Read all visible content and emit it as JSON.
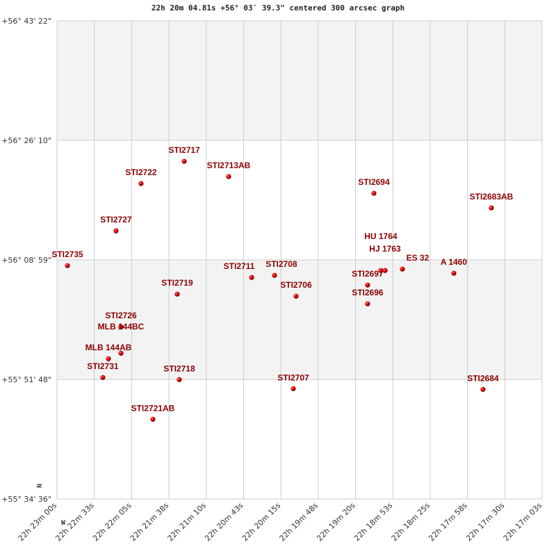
{
  "chart_data": {
    "type": "scatter",
    "title": "22h 20m 04.81s +56° 03′ 39.3\" centered 300 arcsec graph",
    "x_axis": {
      "unit": "RA (h m s)",
      "range": [
        "22h 23m 00s",
        "22h 16m 36s"
      ],
      "tick_labels": [
        "22h 23m 00s",
        "22h 22m 33s",
        "22h 22m 05s",
        "22h 21m 38s",
        "22h 21m 10s",
        "22h 20m 43s",
        "22h 20m 15s",
        "22h 19m 48s",
        "22h 19m 20s",
        "22h 18m 53s",
        "22h 18m 25s",
        "22h 17m 58s",
        "22h 17m 30s",
        "22h 17m 03s"
      ]
    },
    "y_axis": {
      "unit": "Dec (d m s)",
      "range": [
        "+55 34 36",
        "+56 43 22"
      ],
      "tick_labels": [
        "+56° 43' 22\"",
        "+56° 26' 10\"",
        "+56° 08' 59\"",
        "+55° 51' 48\"",
        "+55° 34' 36\""
      ]
    },
    "compass": {
      "north": "N",
      "west": "W"
    },
    "grid": true,
    "colors": {
      "point": "#cc0000",
      "label": "#8b0000",
      "band": "#f3f3f3",
      "grid": "#cccccc"
    },
    "points": [
      {
        "name": "STI2735",
        "ra": "22 22 50.9",
        "dec": "+56 08 10"
      },
      {
        "name": "STI2727",
        "ra": "22 22 08.6",
        "dec": "+56 13 10"
      },
      {
        "name": "STI2722",
        "ra": "22 21 46.8",
        "dec": "+56 19 58"
      },
      {
        "name": "STI2717",
        "ra": "22 21 09.2",
        "dec": "+56 23 10"
      },
      {
        "name": "STI2713AB",
        "ra": "22 20 30.5",
        "dec": "+56 20 58"
      },
      {
        "name": "STI2694",
        "ra": "22 18 24.0",
        "dec": "+56 18 34"
      },
      {
        "name": "STI2683AB",
        "ra": "22 16 41.7",
        "dec": "+56 16 28"
      },
      {
        "name": "STI2711",
        "ra": "22 20 10.5",
        "dec": "+56 06 28"
      },
      {
        "name": "STI2708",
        "ra": "22 19 50.6",
        "dec": "+56 06 46"
      },
      {
        "name": "STI2706",
        "ra": "22 19 31.8",
        "dec": "+56 03 46"
      },
      {
        "name": "STI2697",
        "ra": "22 18 29.5",
        "dec": "+56 05 22"
      },
      {
        "name": "STI2696",
        "ra": "22 18 29.5",
        "dec": "+56 02 40"
      },
      {
        "name": "HU 1764",
        "ra": "22 18 18.0",
        "dec": "+56 07 28"
      },
      {
        "name": "HJ 1763",
        "ra": "22 18 14.3",
        "dec": "+56 07 28"
      },
      {
        "name": "ES 32",
        "ra": "22 17 59.2",
        "dec": "+56 07 40"
      },
      {
        "name": "A  1460",
        "ra": "22 17 14.4",
        "dec": "+56 07 04"
      },
      {
        "name": "STI2719",
        "ra": "22 21 15.3",
        "dec": "+56 04 04"
      },
      {
        "name": "STI2726",
        "ra": "22 22 04.3",
        "dec": "+55 59 22"
      },
      {
        "name": "MLB 144BC",
        "ra": "22 22 04.3",
        "dec": "+55 55 34"
      },
      {
        "name": "MLB 144AB",
        "ra": "22 22 15.2",
        "dec": "+55 54 46"
      },
      {
        "name": "STI2731",
        "ra": "22 22 20.1",
        "dec": "+55 52 04"
      },
      {
        "name": "STI2718",
        "ra": "22 21 13.5",
        "dec": "+55 51 46"
      },
      {
        "name": "STI2707",
        "ra": "22 19 34.2",
        "dec": "+55 50 28"
      },
      {
        "name": "STI2684",
        "ra": "22 16 49.0",
        "dec": "+55 50 22"
      },
      {
        "name": "STI2721AB",
        "ra": "22 21 36.5",
        "dec": "+55 46 04"
      }
    ]
  }
}
